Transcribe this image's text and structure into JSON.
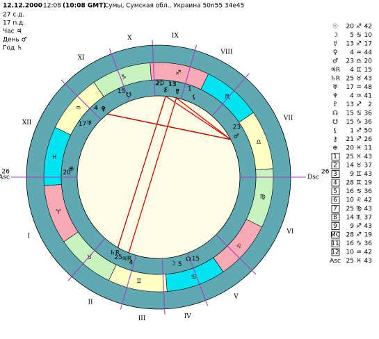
{
  "header": {
    "date": "12.12.2000",
    "time": "12:08",
    "gmt": "(10:08 GMT)",
    "place": "Сумы, Сумская обл., Украина 50n55  34e45"
  },
  "info": [
    "27 с.д.",
    "17 п.д.",
    "Час ♃",
    "День ♂",
    "Год ♄"
  ],
  "zodiac": [
    "♈",
    "♉",
    "♊",
    "♋",
    "♌",
    "♍",
    "♎",
    "♏",
    "♐",
    "♑",
    "♒",
    "♓"
  ],
  "house_numerals": [
    "I",
    "II",
    "III",
    "IV",
    "V",
    "VI",
    "VII",
    "VIII",
    "IX",
    "X",
    "XI",
    "XII"
  ],
  "angles": {
    "asc": "Asc",
    "asc_deg": 26,
    "dsc": "Dsc",
    "dsc_deg": 26
  },
  "planets": [
    {
      "symbol": "☉",
      "deg": 20,
      "sign": "♐",
      "min": 42
    },
    {
      "symbol": "☽",
      "deg": 5,
      "sign": "♋",
      "min": 10
    },
    {
      "symbol": "☿",
      "deg": 13,
      "sign": "♐",
      "min": 17
    },
    {
      "symbol": "♀",
      "deg": 4,
      "sign": "♒",
      "min": 44
    },
    {
      "symbol": "♂",
      "deg": 23,
      "sign": "♎",
      "min": 20
    },
    {
      "symbol": "♃R",
      "deg": 4,
      "sign": "♊",
      "min": 15
    },
    {
      "symbol": "♄R",
      "deg": 25,
      "sign": "♉",
      "min": 43
    },
    {
      "symbol": "♅",
      "deg": 17,
      "sign": "♒",
      "min": 48
    },
    {
      "symbol": "♆",
      "deg": 4,
      "sign": "♒",
      "min": 41
    },
    {
      "symbol": "♇",
      "deg": 13,
      "sign": "♐",
      "min": 2
    },
    {
      "symbol": "☊",
      "deg": 15,
      "sign": "♋",
      "min": 36
    },
    {
      "symbol": "☋",
      "deg": 15,
      "sign": "♑",
      "min": 36
    },
    {
      "symbol": "⚸",
      "deg": 1,
      "sign": "♐",
      "min": 50
    },
    {
      "symbol": "⚷",
      "deg": 21,
      "sign": "♐",
      "min": 26
    },
    {
      "symbol": "⊕",
      "deg": 20,
      "sign": "♓",
      "min": 11
    }
  ],
  "houses": [
    {
      "symbol": "1",
      "deg": 25,
      "sign": "♓",
      "min": 43
    },
    {
      "symbol": "2",
      "deg": 14,
      "sign": "♉",
      "min": 37
    },
    {
      "symbol": "3",
      "deg": 9,
      "sign": "♊",
      "min": 43
    },
    {
      "symbol": "4",
      "deg": 28,
      "sign": "♊",
      "min": 19
    },
    {
      "symbol": "5",
      "deg": 16,
      "sign": "♋",
      "min": 36
    },
    {
      "symbol": "6",
      "deg": 10,
      "sign": "♌",
      "min": 42
    },
    {
      "symbol": "7",
      "deg": 25,
      "sign": "♍",
      "min": 43
    },
    {
      "symbol": "8",
      "deg": 14,
      "sign": "♏",
      "min": 37
    },
    {
      "symbol": "9",
      "deg": 9,
      "sign": "♐",
      "min": 43
    },
    {
      "symbol": "MC",
      "deg": 28,
      "sign": "♐",
      "min": 19
    },
    {
      "symbol": "11",
      "deg": 16,
      "sign": "♑",
      "min": 36
    },
    {
      "symbol": "12",
      "deg": 10,
      "sign": "♒",
      "min": 42
    }
  ],
  "asc_row": {
    "symbol": "Asc",
    "deg": 25,
    "sign": "♓",
    "min": 43
  }
}
